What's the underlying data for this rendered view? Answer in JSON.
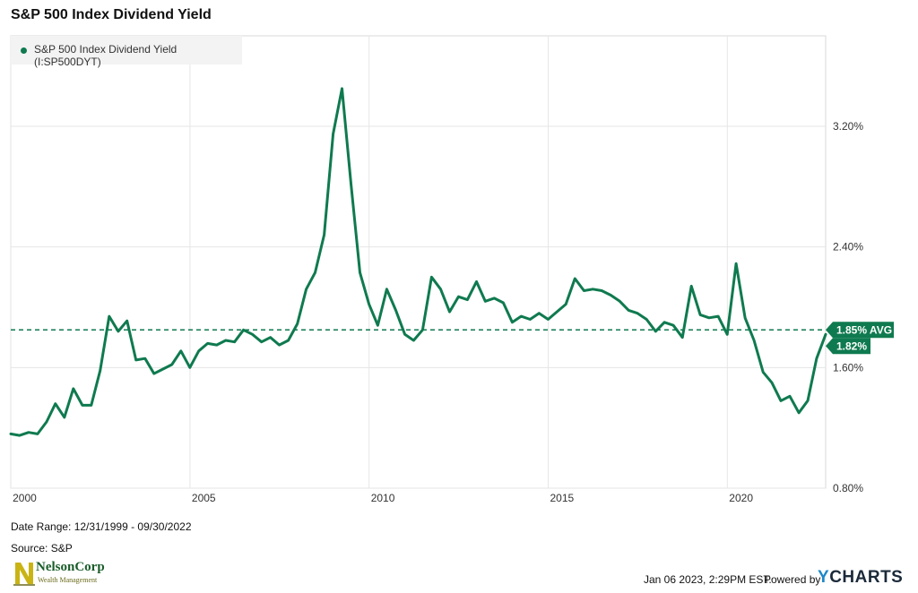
{
  "page": {
    "title": "S&P 500 Index Dividend Yield",
    "footer": {
      "date_range": "Date Range: 12/31/1999 - 09/30/2022",
      "source": "Source: S&P",
      "timestamp": "Jan 06 2023, 2:29PM EST.",
      "powered_by": "Powered by",
      "brand_y": "Y",
      "brand_rest": "CHARTS"
    },
    "logo": {
      "name": "NelsonCorp",
      "tagline": "Wealth Management"
    }
  },
  "colors": {
    "series": "#0f7a4f",
    "grid": "#e6e6e6",
    "text": "#222222"
  },
  "chart_data": {
    "type": "line",
    "title": "S&P 500 Index Dividend Yield",
    "legend": {
      "placement": "top-left",
      "entries": [
        "S&P 500 Index Dividend Yield (I:SP500DYT)"
      ]
    },
    "x_axis": {
      "type": "date",
      "range": [
        "1999-12-31",
        "2022-09-30"
      ],
      "ticks": [
        2000,
        2005,
        2010,
        2015,
        2020
      ],
      "grid": true
    },
    "y_axis": {
      "unit": "%",
      "side": "right",
      "range": [
        0.8,
        3.8
      ],
      "ticks": [
        0.8,
        1.6,
        2.4,
        3.2
      ],
      "tick_labels": [
        "0.80%",
        "1.60%",
        "2.40%",
        "3.20%"
      ],
      "grid": true
    },
    "average": {
      "value": 1.85,
      "label": "1.85% AVG"
    },
    "last_value": {
      "value": 1.82,
      "label": "1.82%"
    },
    "series": [
      {
        "name": "S&P 500 Index Dividend Yield (I:SP500DYT)",
        "points": [
          [
            "1999-12-31",
            1.16
          ],
          [
            "2000-03-31",
            1.15
          ],
          [
            "2000-06-30",
            1.17
          ],
          [
            "2000-09-30",
            1.16
          ],
          [
            "2000-12-31",
            1.24
          ],
          [
            "2001-03-31",
            1.36
          ],
          [
            "2001-06-30",
            1.27
          ],
          [
            "2001-09-30",
            1.46
          ],
          [
            "2001-12-31",
            1.35
          ],
          [
            "2002-03-31",
            1.35
          ],
          [
            "2002-06-30",
            1.58
          ],
          [
            "2002-09-30",
            1.94
          ],
          [
            "2002-12-31",
            1.84
          ],
          [
            "2003-03-31",
            1.91
          ],
          [
            "2003-06-30",
            1.65
          ],
          [
            "2003-09-30",
            1.66
          ],
          [
            "2003-12-31",
            1.56
          ],
          [
            "2004-03-31",
            1.59
          ],
          [
            "2004-06-30",
            1.62
          ],
          [
            "2004-09-30",
            1.71
          ],
          [
            "2004-12-31",
            1.6
          ],
          [
            "2005-03-31",
            1.71
          ],
          [
            "2005-06-30",
            1.76
          ],
          [
            "2005-09-30",
            1.75
          ],
          [
            "2005-12-31",
            1.78
          ],
          [
            "2006-03-31",
            1.77
          ],
          [
            "2006-06-30",
            1.85
          ],
          [
            "2006-09-30",
            1.82
          ],
          [
            "2006-12-31",
            1.77
          ],
          [
            "2007-03-31",
            1.8
          ],
          [
            "2007-06-30",
            1.75
          ],
          [
            "2007-09-30",
            1.78
          ],
          [
            "2007-12-31",
            1.89
          ],
          [
            "2008-03-31",
            2.12
          ],
          [
            "2008-06-30",
            2.23
          ],
          [
            "2008-09-30",
            2.48
          ],
          [
            "2008-12-31",
            3.15
          ],
          [
            "2009-03-31",
            3.45
          ],
          [
            "2009-06-30",
            2.82
          ],
          [
            "2009-09-30",
            2.23
          ],
          [
            "2009-12-31",
            2.02
          ],
          [
            "2010-03-31",
            1.88
          ],
          [
            "2010-06-30",
            2.12
          ],
          [
            "2010-09-30",
            1.98
          ],
          [
            "2010-12-31",
            1.82
          ],
          [
            "2011-03-31",
            1.78
          ],
          [
            "2011-06-30",
            1.85
          ],
          [
            "2011-09-30",
            2.2
          ],
          [
            "2011-12-31",
            2.12
          ],
          [
            "2012-03-31",
            1.97
          ],
          [
            "2012-06-30",
            2.07
          ],
          [
            "2012-09-30",
            2.05
          ],
          [
            "2012-12-31",
            2.17
          ],
          [
            "2013-03-31",
            2.04
          ],
          [
            "2013-06-30",
            2.06
          ],
          [
            "2013-09-30",
            2.03
          ],
          [
            "2013-12-31",
            1.9
          ],
          [
            "2014-03-31",
            1.94
          ],
          [
            "2014-06-30",
            1.92
          ],
          [
            "2014-09-30",
            1.96
          ],
          [
            "2014-12-31",
            1.92
          ],
          [
            "2015-03-31",
            1.97
          ],
          [
            "2015-06-30",
            2.02
          ],
          [
            "2015-09-30",
            2.19
          ],
          [
            "2015-12-31",
            2.11
          ],
          [
            "2016-03-31",
            2.12
          ],
          [
            "2016-06-30",
            2.11
          ],
          [
            "2016-09-30",
            2.08
          ],
          [
            "2016-12-31",
            2.04
          ],
          [
            "2017-03-31",
            1.98
          ],
          [
            "2017-06-30",
            1.96
          ],
          [
            "2017-09-30",
            1.92
          ],
          [
            "2017-12-31",
            1.84
          ],
          [
            "2018-03-31",
            1.9
          ],
          [
            "2018-06-30",
            1.88
          ],
          [
            "2018-09-30",
            1.8
          ],
          [
            "2018-12-31",
            2.14
          ],
          [
            "2019-03-31",
            1.95
          ],
          [
            "2019-06-30",
            1.93
          ],
          [
            "2019-09-30",
            1.94
          ],
          [
            "2019-12-31",
            1.82
          ],
          [
            "2020-03-31",
            2.29
          ],
          [
            "2020-06-30",
            1.93
          ],
          [
            "2020-09-30",
            1.78
          ],
          [
            "2020-12-31",
            1.57
          ],
          [
            "2021-03-31",
            1.5
          ],
          [
            "2021-06-30",
            1.38
          ],
          [
            "2021-09-30",
            1.41
          ],
          [
            "2021-12-31",
            1.3
          ],
          [
            "2022-03-31",
            1.38
          ],
          [
            "2022-06-30",
            1.66
          ],
          [
            "2022-09-30",
            1.82
          ]
        ]
      }
    ]
  }
}
